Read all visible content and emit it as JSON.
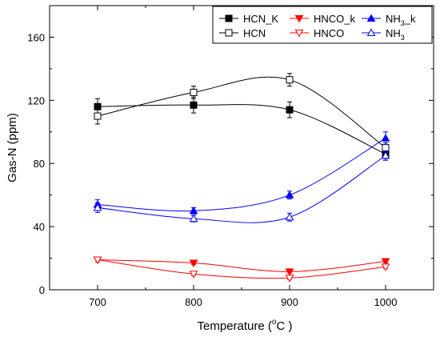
{
  "chart_data": {
    "type": "line",
    "xlabel": "Temperature (",
    "xlabel_degree": "o",
    "xlabel_unit": "C )",
    "ylabel": "Gas-N (ppm)",
    "xlim": [
      650,
      1050
    ],
    "ylim": [
      0,
      180
    ],
    "x_ticks": [
      700,
      800,
      900,
      1000
    ],
    "y_ticks": [
      0,
      40,
      80,
      120,
      160
    ],
    "x": [
      700,
      800,
      900,
      1000
    ],
    "grid": false,
    "legend_position": "top-right",
    "series": [
      {
        "name": "HCN_K",
        "legend_main": "HCN_K",
        "legend_sub": "",
        "legend_tail": "",
        "color": "#000000",
        "marker": "square-filled",
        "values": [
          116,
          117,
          114,
          86
        ],
        "errors": [
          5,
          5,
          5,
          3
        ]
      },
      {
        "name": "HCN",
        "legend_main": "HCN",
        "legend_sub": "",
        "legend_tail": "",
        "color": "#000000",
        "marker": "square-open",
        "values": [
          110,
          125,
          133,
          90
        ],
        "errors": [
          5,
          4,
          4,
          3
        ]
      },
      {
        "name": "HNCO_k",
        "legend_main": "HNCO_k",
        "legend_sub": "",
        "legend_tail": "",
        "color": "#ff0000",
        "marker": "triangle-down-filled",
        "values": [
          19,
          17,
          11.5,
          18
        ],
        "errors": [
          1.5,
          1,
          1,
          1
        ]
      },
      {
        "name": "HNCO",
        "legend_main": "HNCO",
        "legend_sub": "",
        "legend_tail": "",
        "color": "#ff0000",
        "marker": "triangle-down-open",
        "values": [
          19,
          10,
          7.5,
          14.5
        ],
        "errors": [
          1.5,
          1,
          1,
          1
        ]
      },
      {
        "name": "NH3_k",
        "legend_main": "NH",
        "legend_sub": "3",
        "legend_tail": "_k",
        "color": "#0000ff",
        "marker": "triangle-up-filled",
        "values": [
          54,
          50,
          60,
          96
        ],
        "errors": [
          3,
          2,
          2.5,
          4
        ]
      },
      {
        "name": "NH3",
        "legend_main": "NH",
        "legend_sub": "3",
        "legend_tail": "",
        "color": "#0000ff",
        "marker": "triangle-up-open",
        "values": [
          52,
          45,
          46,
          85
        ],
        "errors": [
          3,
          2,
          2.5,
          3
        ]
      }
    ]
  }
}
